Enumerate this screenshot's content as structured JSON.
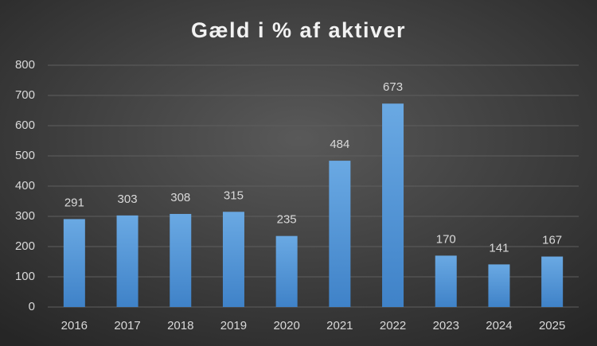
{
  "chart_data": {
    "type": "bar",
    "title": "Gæld i % af aktiver",
    "categories": [
      "2016",
      "2017",
      "2018",
      "2019",
      "2020",
      "2021",
      "2022",
      "2023",
      "2024",
      "2025"
    ],
    "values": [
      291,
      303,
      308,
      315,
      235,
      484,
      673,
      170,
      141,
      167
    ],
    "color": "#5b9bd5",
    "ylim": [
      0,
      800
    ],
    "yticks": [
      0,
      100,
      200,
      300,
      400,
      500,
      600,
      700,
      800
    ],
    "grid": true
  }
}
